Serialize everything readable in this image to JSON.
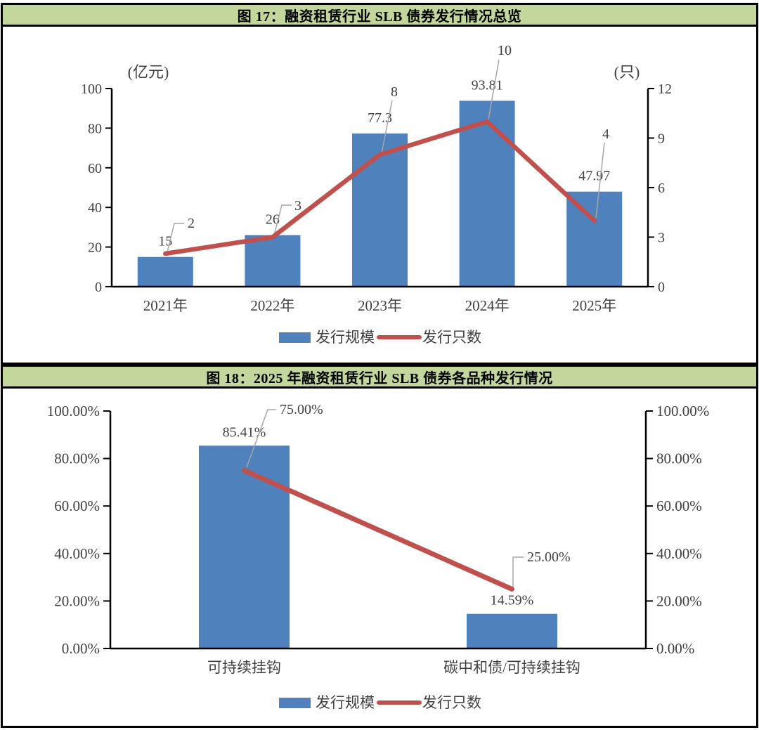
{
  "colors": {
    "bar": "#4f81bd",
    "line": "#c0504d",
    "header_bg": "#c3d69b",
    "border": "#000000",
    "axis": "#000000",
    "text": "#404040",
    "leader": "#a6a6a6",
    "background": "#ffffff"
  },
  "chart_data": [
    {
      "id": "figure-17",
      "type": "combo-bar-line",
      "title": "图 17：融资租赁行业 SLB 债券发行情况总览",
      "categories": [
        "2021年",
        "2022年",
        "2023年",
        "2024年",
        "2025年"
      ],
      "series": [
        {
          "name": "发行规模",
          "type": "bar",
          "axis": "left",
          "color": "#4f81bd",
          "values": [
            15,
            26,
            77.3,
            93.81,
            47.97
          ],
          "labels": [
            "15",
            "26",
            "77.3",
            "93.81",
            "47.97"
          ]
        },
        {
          "name": "发行只数",
          "type": "line",
          "axis": "right",
          "color": "#c0504d",
          "values": [
            2,
            3,
            8,
            10,
            4
          ],
          "labels": [
            "2",
            "3",
            "8",
            "10",
            "4"
          ]
        }
      ],
      "left_axis": {
        "unit": "(亿元)",
        "min": 0,
        "max": 100,
        "step": 20,
        "ticks": [
          "0",
          "20",
          "40",
          "60",
          "80",
          "100"
        ]
      },
      "right_axis": {
        "unit": "(只)",
        "min": 0,
        "max": 12,
        "step": 3,
        "ticks": [
          "0",
          "3",
          "6",
          "9",
          "12"
        ]
      },
      "legend": [
        "发行规模",
        "发行只数"
      ],
      "legend_position": "bottom",
      "grid": false
    },
    {
      "id": "figure-18",
      "type": "combo-bar-line",
      "title": "图 18：2025 年融资租赁行业 SLB 债券各品种发行情况",
      "categories": [
        "可持续挂钩",
        "碳中和债/可持续挂钩"
      ],
      "series": [
        {
          "name": "发行规模",
          "type": "bar",
          "axis": "left",
          "color": "#4f81bd",
          "values": [
            85.41,
            14.59
          ],
          "labels": [
            "85.41%",
            "14.59%"
          ]
        },
        {
          "name": "发行只数",
          "type": "line",
          "axis": "right",
          "color": "#c0504d",
          "values": [
            75,
            25
          ],
          "labels": [
            "75.00%",
            "25.00%"
          ]
        }
      ],
      "left_axis": {
        "unit": "",
        "min": 0,
        "max": 100,
        "step": 20,
        "ticks": [
          "0.00%",
          "20.00%",
          "40.00%",
          "60.00%",
          "80.00%",
          "100.00%"
        ]
      },
      "right_axis": {
        "unit": "",
        "min": 0,
        "max": 100,
        "step": 20,
        "ticks": [
          "0.00%",
          "20.00%",
          "40.00%",
          "60.00%",
          "80.00%",
          "100.00%"
        ]
      },
      "legend": [
        "发行规模",
        "发行只数"
      ],
      "legend_position": "bottom",
      "grid": false
    }
  ]
}
